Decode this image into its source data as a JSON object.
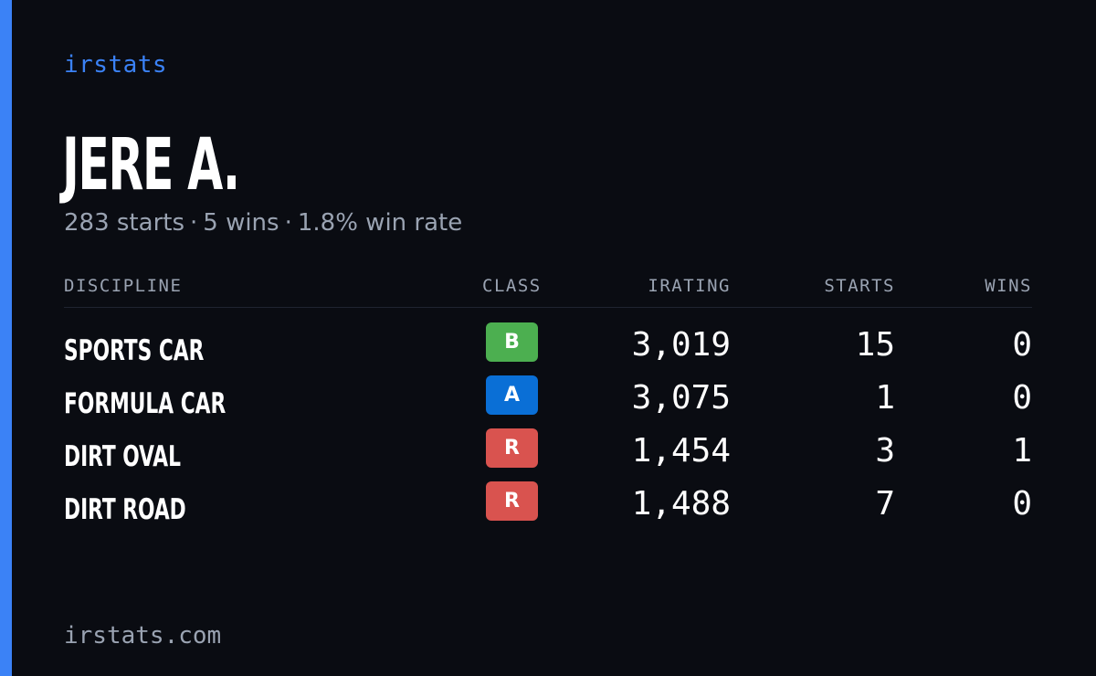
{
  "colors": {
    "accent": "#3b82f6",
    "background": "#0a0c12",
    "muted": "#9aa3b2"
  },
  "brand": "irstats",
  "driver": {
    "name": "JERE A.",
    "starts_text": "283 starts",
    "wins_text": "5 wins",
    "win_rate_text": "1.8% win rate",
    "separator": "·"
  },
  "table": {
    "headers": {
      "discipline": "DISCIPLINE",
      "class": "CLASS",
      "irating": "IRATING",
      "starts": "STARTS",
      "wins": "WINS"
    },
    "rows": [
      {
        "discipline": "SPORTS CAR",
        "class": "B",
        "class_color": "#4caf50",
        "irating": "3,019",
        "starts": "15",
        "wins": "0"
      },
      {
        "discipline": "FORMULA CAR",
        "class": "A",
        "class_color": "#0a6fd6",
        "irating": "3,075",
        "starts": "1",
        "wins": "0"
      },
      {
        "discipline": "DIRT OVAL",
        "class": "R",
        "class_color": "#d9534f",
        "irating": "1,454",
        "starts": "3",
        "wins": "1"
      },
      {
        "discipline": "DIRT ROAD",
        "class": "R",
        "class_color": "#d9534f",
        "irating": "1,488",
        "starts": "7",
        "wins": "0"
      }
    ]
  },
  "footer": "irstats.com"
}
